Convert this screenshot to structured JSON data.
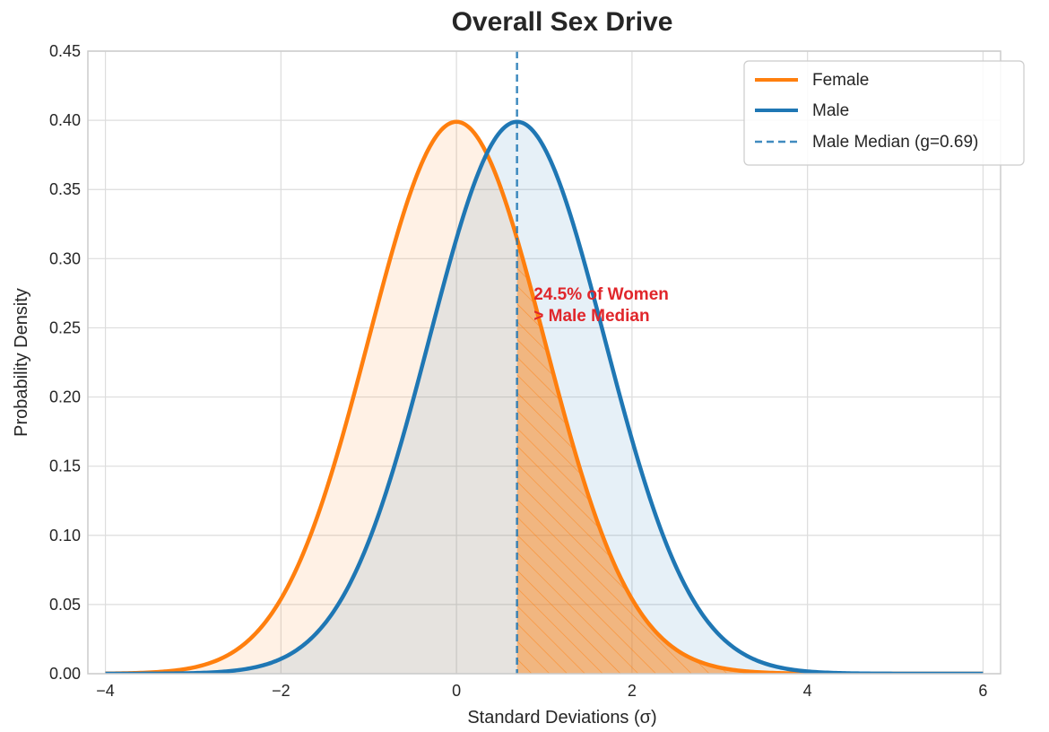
{
  "chart_data": {
    "type": "area",
    "title": "Overall Sex Drive",
    "xlabel": "Standard Deviations (σ)",
    "ylabel": "Probability Density",
    "xlim": [
      -4.2,
      6.2
    ],
    "ylim": [
      0,
      0.45
    ],
    "x_ticks": [
      -4,
      -2,
      0,
      2,
      4,
      6
    ],
    "x_tick_labels": [
      "−4",
      "−2",
      "0",
      "2",
      "4",
      "6"
    ],
    "y_ticks": [
      0.0,
      0.05,
      0.1,
      0.15,
      0.2,
      0.25,
      0.3,
      0.35,
      0.4,
      0.45
    ],
    "y_tick_labels": [
      "0.00",
      "0.05",
      "0.10",
      "0.15",
      "0.20",
      "0.25",
      "0.30",
      "0.35",
      "0.40",
      "0.45"
    ],
    "grid": true,
    "x_domain": [
      -4,
      6
    ],
    "series": [
      {
        "name": "Female",
        "distribution": "normal",
        "mean": 0,
        "sd": 1,
        "color": "#ff7f0e"
      },
      {
        "name": "Male",
        "distribution": "normal",
        "mean": 0.69,
        "sd": 1,
        "color": "#1f77b4"
      }
    ],
    "median_line": {
      "name": "Male Median (g=0.69)",
      "x": 0.69,
      "color": "#1f77b4"
    },
    "annotation": {
      "lines": [
        "24.5% of Women",
        "> Male Median"
      ],
      "x": 0.88,
      "y": 0.26,
      "color": "#e0262b"
    },
    "legend_position": "top-right"
  }
}
